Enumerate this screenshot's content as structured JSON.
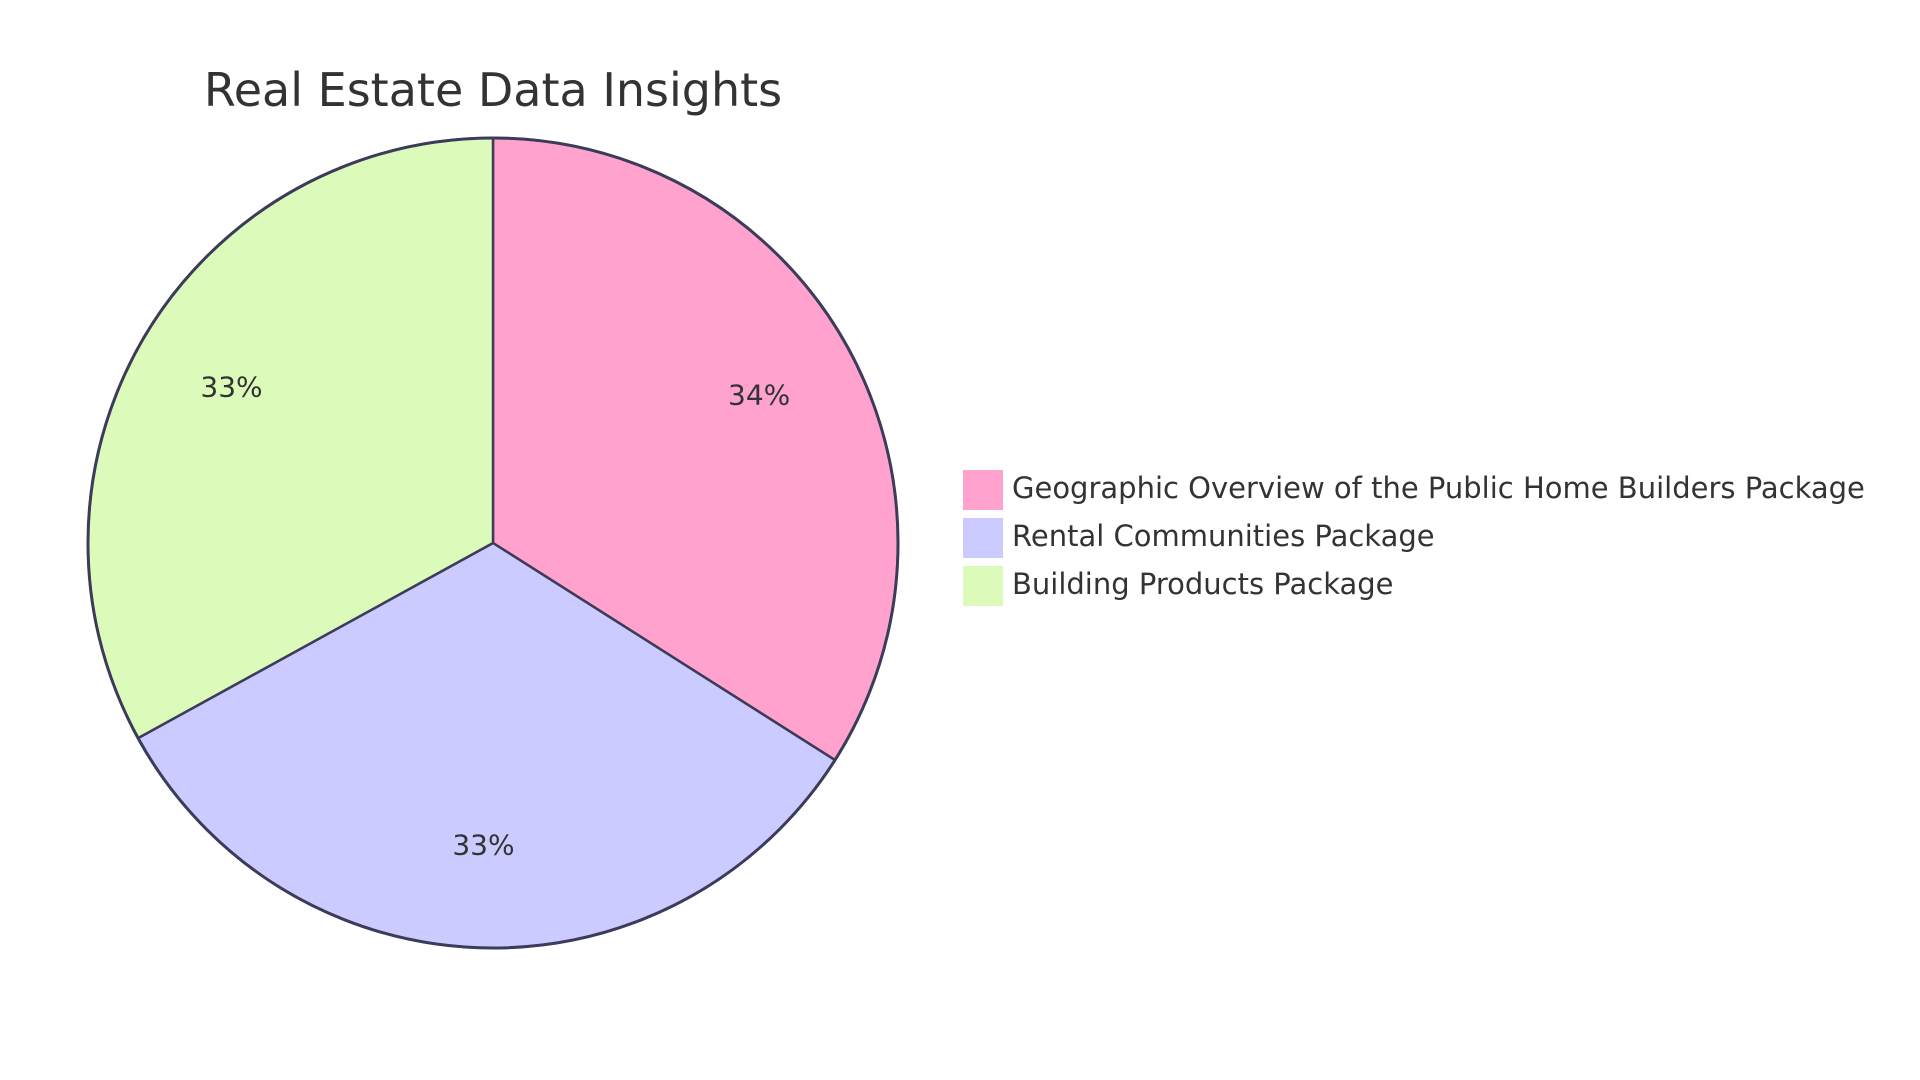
{
  "chart_data": {
    "type": "pie",
    "title": "Real Estate Data Insights",
    "slices": [
      {
        "label": "Geographic Overview of the Public Home Builders Package",
        "value": 34,
        "display": "34%",
        "color": "#FFA3CE"
      },
      {
        "label": "Rental Communities Package",
        "value": 33,
        "display": "33%",
        "color": "#CBCBFF"
      },
      {
        "label": "Building Products Package",
        "value": 33,
        "display": "33%",
        "color": "#DCFBBB"
      }
    ],
    "legend_position": "right",
    "stroke_color": "#3C3C5A"
  }
}
